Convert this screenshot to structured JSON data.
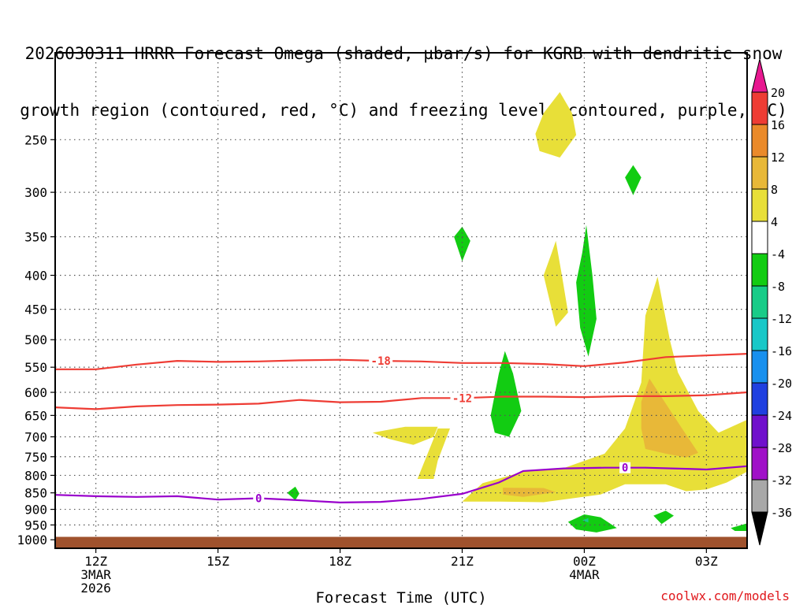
{
  "title": {
    "line1": "2026030311 HRRR Forecast Omega (shaded, µbar/s) for KGRB with dendritic snow",
    "line2": "growth region (contoured, red, °C) and freezing level (contoured, purple, °C)"
  },
  "credit": "coolwx.com/models",
  "colors": {
    "ground": "#a0522d",
    "dendritic": "#ee3c34",
    "freezing": "#9900cc",
    "grid": "#555555"
  },
  "chart_data": {
    "type": "heatmap",
    "xlabel": "Forecast Time (UTC)",
    "x_range_hours": [
      11,
      28
    ],
    "x_ticks": [
      {
        "hour": 12,
        "labels": [
          "12Z",
          "3MAR",
          "2026"
        ]
      },
      {
        "hour": 15,
        "labels": [
          "15Z"
        ]
      },
      {
        "hour": 18,
        "labels": [
          "18Z"
        ]
      },
      {
        "hour": 21,
        "labels": [
          "21Z"
        ]
      },
      {
        "hour": 24,
        "labels": [
          "00Z",
          "4MAR"
        ]
      },
      {
        "hour": 27,
        "labels": [
          "03Z"
        ]
      }
    ],
    "y_scale": "log-pressure",
    "y_range_mb": [
      1030,
      185
    ],
    "y_ticks": [
      250,
      300,
      350,
      400,
      450,
      500,
      550,
      600,
      650,
      700,
      750,
      800,
      850,
      900,
      950,
      1000
    ],
    "colorbar": {
      "unit": "µbar/s",
      "levels": [
        {
          "label": "20",
          "color": "#f04060"
        },
        {
          "label": "16",
          "color": "#ee3c34"
        },
        {
          "label": "12",
          "color": "#ea8a2a"
        },
        {
          "label": "8",
          "color": "#e8b838"
        },
        {
          "label": "4",
          "color": "#e8df38"
        },
        {
          "label": "-4",
          "color": "#ffffff"
        },
        {
          "label": "-8",
          "color": "#12cc12"
        },
        {
          "label": "-12",
          "color": "#18cc88"
        },
        {
          "label": "-16",
          "color": "#18c8c8"
        },
        {
          "label": "-20",
          "color": "#1890ee"
        },
        {
          "label": "-24",
          "color": "#2040e0"
        },
        {
          "label": "-28",
          "color": "#7010cc"
        },
        {
          "label": "-32",
          "color": "#a010c8"
        },
        {
          "label": "-36",
          "color": "#a8a8a8"
        }
      ],
      "top_arrow_color": "#e81890",
      "bottom_arrow_color": "#000000"
    },
    "contours": [
      {
        "label": "-18",
        "color": "#ee3c34",
        "label_hour": 19.0,
        "points": [
          [
            11,
            554
          ],
          [
            12,
            554
          ],
          [
            13,
            545
          ],
          [
            14,
            538
          ],
          [
            15,
            540
          ],
          [
            16,
            539
          ],
          [
            17,
            537
          ],
          [
            18,
            536
          ],
          [
            19,
            538
          ],
          [
            20,
            539
          ],
          [
            21,
            542
          ],
          [
            22,
            542
          ],
          [
            23,
            544
          ],
          [
            24,
            548
          ],
          [
            25,
            541
          ],
          [
            26,
            531
          ],
          [
            27,
            528
          ],
          [
            28,
            525
          ]
        ]
      },
      {
        "label": "-12",
        "color": "#ee3c34",
        "label_hour": 21.0,
        "points": [
          [
            11,
            632
          ],
          [
            12,
            636
          ],
          [
            13,
            630
          ],
          [
            14,
            627
          ],
          [
            15,
            626
          ],
          [
            16,
            624
          ],
          [
            17,
            616
          ],
          [
            18,
            621
          ],
          [
            19,
            620
          ],
          [
            20,
            612
          ],
          [
            21,
            612
          ],
          [
            22,
            609
          ],
          [
            23,
            609
          ],
          [
            24,
            610
          ],
          [
            25,
            608
          ],
          [
            26,
            608
          ],
          [
            27,
            606
          ],
          [
            28,
            600
          ]
        ]
      },
      {
        "label": "0",
        "color": "#9900cc",
        "label_hour": 16.0,
        "points": [
          [
            11,
            856
          ],
          [
            12,
            860
          ],
          [
            13,
            862
          ],
          [
            14,
            860
          ],
          [
            15,
            870
          ],
          [
            16,
            866
          ],
          [
            17,
            872
          ],
          [
            18,
            879
          ],
          [
            19,
            877
          ],
          [
            20,
            868
          ],
          [
            21,
            853
          ],
          [
            21.9,
            820
          ],
          [
            22.5,
            788
          ],
          [
            23.5,
            781
          ],
          [
            24.5,
            779
          ],
          [
            25.5,
            779
          ],
          [
            26.5,
            782
          ],
          [
            27,
            784
          ],
          [
            28,
            775
          ]
        ]
      },
      {
        "label": "0",
        "color": "#9900cc",
        "label_hour": 25.0,
        "label_only": true,
        "label_mb": 779
      }
    ],
    "shaded_regions": [
      {
        "level": "4",
        "points": [
          [
            21.0,
            876
          ],
          [
            21.5,
            822
          ],
          [
            22.5,
            790
          ],
          [
            23.5,
            780
          ],
          [
            24.5,
            742
          ],
          [
            25.0,
            680
          ],
          [
            25.4,
            580
          ],
          [
            25.5,
            460
          ],
          [
            25.8,
            402
          ],
          [
            26.1,
            500
          ],
          [
            26.3,
            560
          ],
          [
            26.8,
            640
          ],
          [
            27.3,
            690
          ],
          [
            28.0,
            660
          ],
          [
            28.0,
            790
          ],
          [
            27.5,
            820
          ],
          [
            27.0,
            840
          ],
          [
            26.5,
            845
          ],
          [
            26.0,
            825
          ],
          [
            25.0,
            825
          ],
          [
            24.4,
            855
          ],
          [
            23.0,
            878
          ],
          [
            21.8,
            876
          ]
        ]
      },
      {
        "level": "4",
        "points": [
          [
            19.9,
            810
          ],
          [
            20.4,
            680
          ],
          [
            20.7,
            680
          ],
          [
            20.4,
            760
          ],
          [
            20.3,
            810
          ]
        ]
      },
      {
        "level": "4",
        "points": [
          [
            18.8,
            690
          ],
          [
            19.6,
            676
          ],
          [
            20.4,
            676
          ],
          [
            20.3,
            700
          ],
          [
            19.8,
            720
          ],
          [
            19.2,
            705
          ]
        ]
      },
      {
        "level": "4",
        "points": [
          [
            22.8,
            245
          ],
          [
            23.0,
            228
          ],
          [
            23.4,
            212
          ],
          [
            23.7,
            228
          ],
          [
            23.8,
            246
          ],
          [
            23.4,
            266
          ],
          [
            22.9,
            260
          ]
        ]
      },
      {
        "level": "4",
        "points": [
          [
            23.0,
            400
          ],
          [
            23.2,
            370
          ],
          [
            23.3,
            355
          ],
          [
            23.45,
            400
          ],
          [
            23.6,
            455
          ],
          [
            23.3,
            478
          ]
        ]
      },
      {
        "level": "8",
        "points": [
          [
            25.4,
            620
          ],
          [
            25.6,
            572
          ],
          [
            26.4,
            680
          ],
          [
            26.8,
            740
          ],
          [
            26.5,
            752
          ],
          [
            26.0,
            742
          ],
          [
            25.5,
            730
          ],
          [
            25.4,
            680
          ]
        ]
      },
      {
        "level": "8",
        "points": [
          [
            22.0,
            835
          ],
          [
            23.0,
            836
          ],
          [
            23.3,
            848
          ],
          [
            22.5,
            862
          ],
          [
            22.0,
            855
          ]
        ]
      },
      {
        "level": "-8",
        "points": [
          [
            23.8,
            410
          ],
          [
            23.95,
            370
          ],
          [
            24.05,
            336
          ],
          [
            24.2,
            400
          ],
          [
            24.3,
            465
          ],
          [
            24.1,
            530
          ],
          [
            23.9,
            480
          ]
        ]
      },
      {
        "level": "-8",
        "points": [
          [
            21.7,
            650
          ],
          [
            21.9,
            562
          ],
          [
            22.05,
            520
          ],
          [
            22.25,
            562
          ],
          [
            22.45,
            640
          ],
          [
            22.15,
            700
          ],
          [
            21.8,
            690
          ]
        ]
      },
      {
        "level": "-8",
        "points": [
          [
            20.8,
            350
          ],
          [
            21.0,
            338
          ],
          [
            21.2,
            355
          ],
          [
            21.0,
            381
          ]
        ]
      },
      {
        "level": "-8",
        "points": [
          [
            25.0,
            285
          ],
          [
            25.2,
            273
          ],
          [
            25.4,
            285
          ],
          [
            25.2,
            303
          ]
        ]
      },
      {
        "level": "-8",
        "points": [
          [
            16.7,
            850
          ],
          [
            16.9,
            832
          ],
          [
            17.0,
            852
          ],
          [
            16.9,
            872
          ]
        ]
      },
      {
        "level": "-8",
        "points": [
          [
            23.6,
            940
          ],
          [
            24.0,
            916
          ],
          [
            24.4,
            925
          ],
          [
            24.8,
            960
          ],
          [
            24.3,
            975
          ],
          [
            23.8,
            965
          ]
        ]
      },
      {
        "level": "-8",
        "points": [
          [
            25.7,
            920
          ],
          [
            26.0,
            904
          ],
          [
            26.2,
            920
          ],
          [
            25.9,
            947
          ]
        ]
      },
      {
        "level": "-8",
        "points": [
          [
            27.6,
            960
          ],
          [
            28.0,
            945
          ],
          [
            28.0,
            970
          ],
          [
            27.7,
            970
          ]
        ]
      },
      {
        "level": "-12",
        "points": [
          [
            23.95,
            935
          ],
          [
            24.1,
            928
          ],
          [
            24.1,
            942
          ]
        ]
      }
    ],
    "ground_mb": 990
  }
}
